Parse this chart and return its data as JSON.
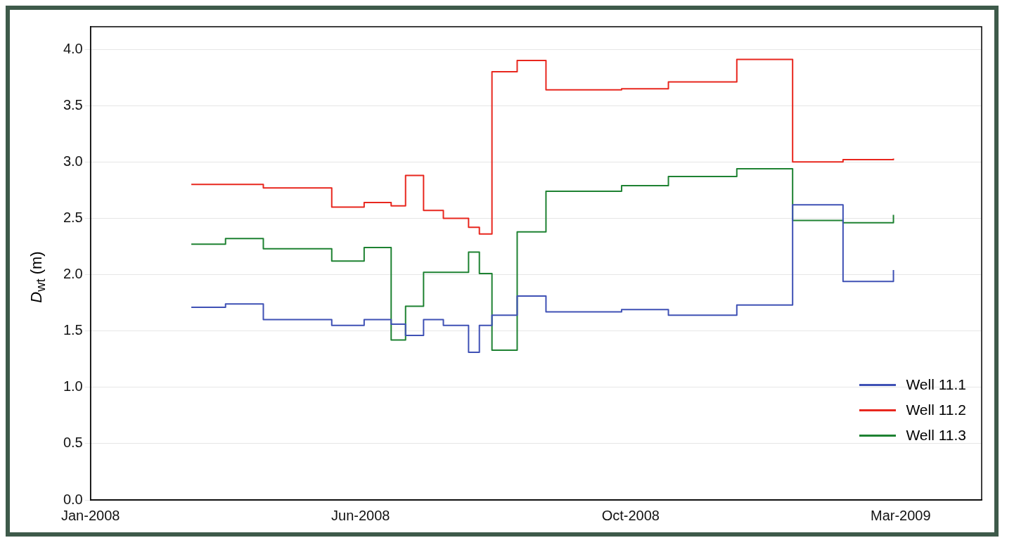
{
  "chart_data": {
    "type": "step",
    "ylabel": "D$_{wt}$ (m)",
    "xlim": [
      "2008-01-05",
      "2009-05-14"
    ],
    "xticks": [
      {
        "value": "2008-01-05",
        "label": "Jan-2008"
      },
      {
        "value": "2008-06-03",
        "label": "Jun-2008"
      },
      {
        "value": "2008-10-31",
        "label": "Oct-2008"
      },
      {
        "value": "2009-03-30",
        "label": "Mar-2009"
      }
    ],
    "ylim": [
      0,
      4.2
    ],
    "yticks": [
      {
        "value": 0,
        "label": "0.0"
      },
      0.5,
      {
        "value": 1,
        "label": "1.0"
      },
      1.5,
      {
        "value": 2,
        "label": "2.0"
      },
      2.5,
      {
        "value": 3,
        "label": "3.0"
      },
      3.5,
      {
        "value": 4,
        "label": "4.0"
      }
    ],
    "grid": "y",
    "legend": "bottom right",
    "line_style": "solid",
    "marker": "none",
    "series": [
      {
        "name": "Well 11.1",
        "color": "#3f51b5",
        "x": [
          "2008-03-01",
          "2008-03-20",
          "2008-04-10",
          "2008-05-18",
          "2008-06-05",
          "2008-06-20",
          "2008-06-28",
          "2008-07-08",
          "2008-07-19",
          "2008-08-02",
          "2008-08-08",
          "2008-08-15",
          "2008-08-29",
          "2008-09-14",
          "2008-10-26",
          "2008-11-21",
          "2008-12-29",
          "2009-01-29",
          "2009-02-26",
          "2009-03-26"
        ],
        "values": [
          1.71,
          1.74,
          1.6,
          1.55,
          1.6,
          1.56,
          1.46,
          1.6,
          1.55,
          1.31,
          1.55,
          1.64,
          1.81,
          1.67,
          1.69,
          1.64,
          1.73,
          2.62,
          1.94,
          2.04
        ]
      },
      {
        "name": "Well 11.2",
        "color": "#e8271e",
        "x": [
          "2008-03-01",
          "2008-04-10",
          "2008-05-18",
          "2008-06-05",
          "2008-06-20",
          "2008-06-28",
          "2008-07-08",
          "2008-07-19",
          "2008-08-02",
          "2008-08-08",
          "2008-08-15",
          "2008-08-29",
          "2008-09-14",
          "2008-10-26",
          "2008-11-21",
          "2008-12-29",
          "2009-01-29",
          "2009-02-26",
          "2009-03-26"
        ],
        "values": [
          2.8,
          2.77,
          2.6,
          2.64,
          2.61,
          2.88,
          2.57,
          2.5,
          2.42,
          2.36,
          3.8,
          3.9,
          3.64,
          3.65,
          3.71,
          3.91,
          3.0,
          3.02,
          3.03
        ]
      },
      {
        "name": "Well 11.3",
        "color": "#1e8232",
        "x": [
          "2008-03-01",
          "2008-03-20",
          "2008-04-10",
          "2008-05-18",
          "2008-06-05",
          "2008-06-20",
          "2008-06-28",
          "2008-07-08",
          "2008-08-02",
          "2008-08-08",
          "2008-08-15",
          "2008-08-29",
          "2008-09-14",
          "2008-10-26",
          "2008-11-21",
          "2008-12-29",
          "2009-01-29",
          "2009-02-26",
          "2009-03-26"
        ],
        "values": [
          2.27,
          2.32,
          2.23,
          2.12,
          2.24,
          1.42,
          1.72,
          2.02,
          2.2,
          2.01,
          1.33,
          2.38,
          2.74,
          2.79,
          2.87,
          2.94,
          2.48,
          2.46,
          2.53
        ]
      }
    ]
  }
}
